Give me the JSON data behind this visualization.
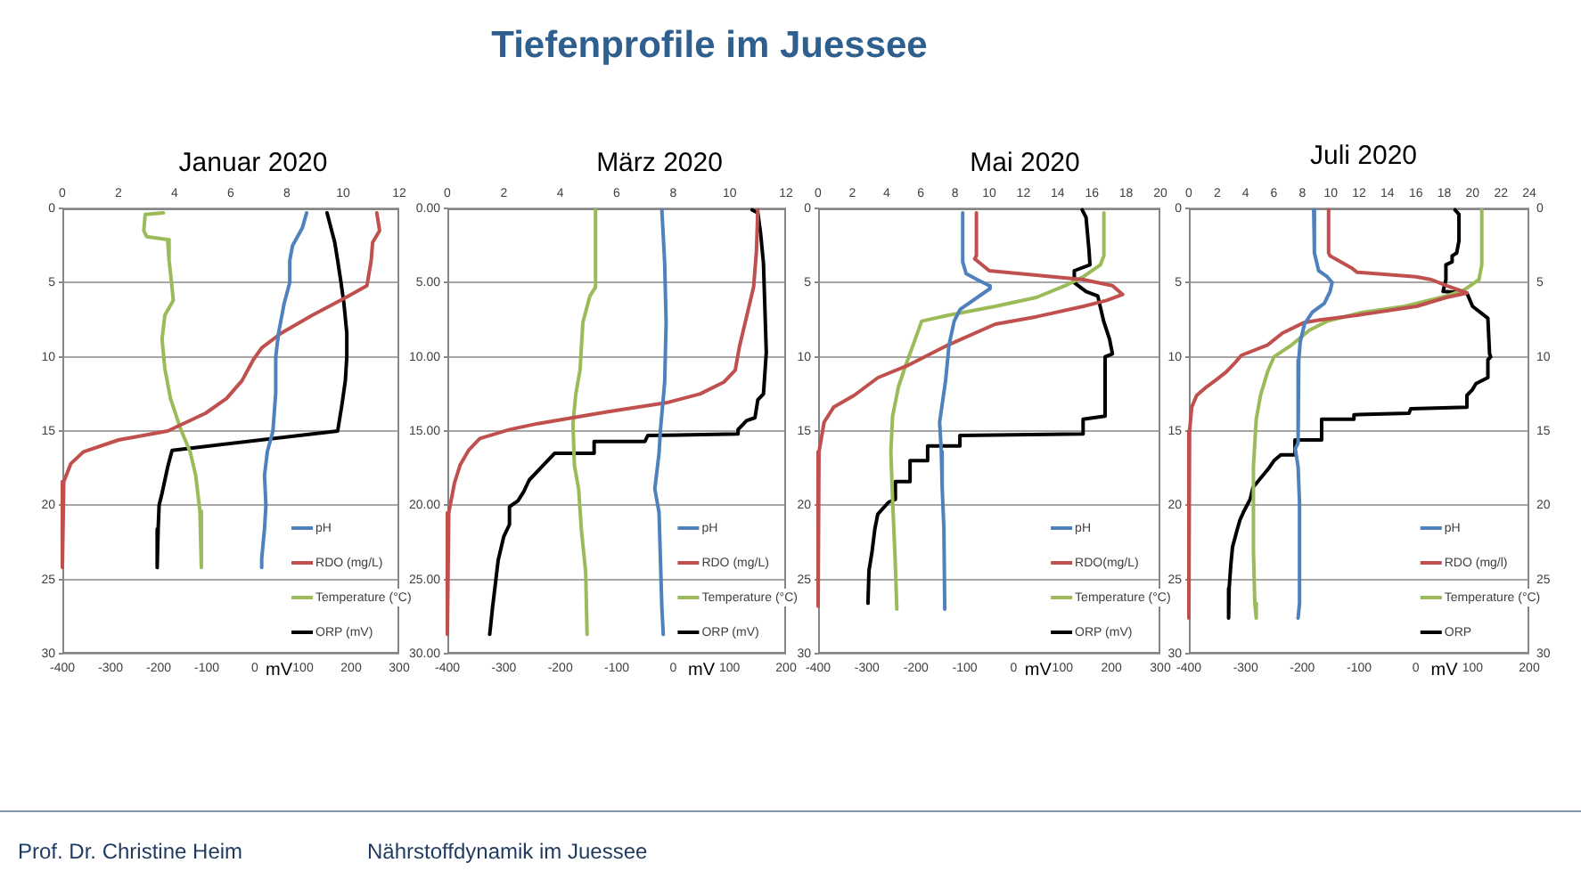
{
  "chart_data": [
    {
      "type": "other",
      "title": "Tiefenprofile im Juessee",
      "annotations": [
        "Prof. Dr. Christine Heim",
        "Nährstoffdynamik im Juessee"
      ]
    },
    {
      "type": "line",
      "title": "Januar 2020",
      "xlabel": "mV",
      "xlim": [
        -400,
        300
      ],
      "xticks": [
        -400,
        -300,
        -200,
        -100,
        0,
        100,
        200,
        300
      ],
      "x2lim": [
        0,
        12
      ],
      "x2ticks": [
        0,
        2,
        4,
        6,
        8,
        10,
        12
      ],
      "ylim": [
        30,
        0
      ],
      "yticks": [
        0,
        5,
        10,
        15,
        20,
        25,
        30
      ],
      "grid": "y",
      "legend": "bottom right",
      "series": [
        {
          "name": "pH",
          "color": "#4f81bd",
          "axis": "x2",
          "x": [
            8.7,
            8.55,
            8.2,
            8.1,
            8.1,
            7.9,
            7.7,
            7.6,
            7.6,
            7.5,
            7.3,
            7.2,
            7.25,
            7.2,
            7.1,
            7.1
          ],
          "values": [
            0.3,
            1.3,
            2.5,
            3.5,
            5.0,
            6.4,
            8.4,
            10.0,
            12.4,
            15.0,
            16.4,
            18.0,
            20.0,
            21.6,
            23.6,
            24.2
          ]
        },
        {
          "name": "RDO (mg/L)",
          "color": "#c0504d",
          "axis": "x2",
          "x": [
            11.2,
            11.3,
            11.05,
            11.0,
            10.85,
            10.1,
            8.9,
            7.8,
            7.1,
            6.8,
            6.4,
            5.85,
            5.1,
            3.75,
            2.0,
            0.75,
            0.3,
            0.05,
            0
          ],
          "values": [
            0.3,
            1.5,
            2.3,
            3.5,
            5.2,
            6.0,
            7.2,
            8.4,
            9.4,
            10.2,
            11.6,
            12.8,
            13.8,
            15.0,
            15.6,
            16.4,
            17.2,
            18.4,
            24.2
          ]
        },
        {
          "name": "Temperature (°C)",
          "color": "#9bbb59",
          "axis": "x2",
          "x": [
            3.6,
            2.95,
            2.9,
            3.0,
            3.75,
            3.8,
            3.9,
            3.95,
            3.65,
            3.55,
            3.65,
            3.85,
            4.2,
            4.55,
            4.75,
            4.9,
            4.95
          ],
          "values": [
            0.3,
            0.4,
            1.5,
            1.9,
            2.1,
            3.5,
            5.2,
            6.2,
            7.2,
            8.8,
            10.8,
            12.8,
            14.8,
            16.4,
            18.0,
            20.4,
            24.2
          ]
        },
        {
          "name": "ORP (mV)",
          "color": "#000000",
          "x": [
            150,
            158,
            166,
            172,
            179,
            185,
            191,
            191,
            188,
            181,
            172,
            -172,
            -177,
            -181,
            -193,
            -199,
            -201,
            -203
          ],
          "values": [
            0.3,
            1.3,
            2.3,
            3.5,
            5.0,
            6.4,
            8.4,
            10.0,
            11.6,
            13.2,
            15.0,
            16.3,
            16.9,
            17.4,
            19.2,
            20.0,
            21.6,
            24.2
          ]
        }
      ]
    },
    {
      "type": "line",
      "title": "März 2020",
      "xlabel": "mV",
      "xlim": [
        -400,
        200
      ],
      "xticks": [
        -400,
        -300,
        -200,
        -100,
        0,
        100,
        200
      ],
      "x2lim": [
        0,
        12
      ],
      "x2ticks": [
        0,
        2,
        4,
        6,
        8,
        10,
        12
      ],
      "ylim": [
        30,
        0
      ],
      "yticks": [
        {
          "value": 0,
          "label": "0.00"
        },
        {
          "value": 5,
          "label": "5.00"
        },
        {
          "value": 10,
          "label": "10.00"
        },
        {
          "value": 15,
          "label": "15.00"
        },
        {
          "value": 20,
          "label": "20.00"
        },
        {
          "value": 25,
          "label": "25.00"
        },
        {
          "value": 30,
          "label": "30.00"
        }
      ],
      "grid": "y",
      "legend": "bottom right",
      "series": [
        {
          "name": "pH",
          "color": "#4f81bd",
          "axis": "x2",
          "x": [
            7.6,
            7.7,
            7.75,
            7.7,
            7.55,
            7.5,
            7.35,
            7.5,
            7.55,
            7.6,
            7.65
          ],
          "values": [
            0.1,
            3.7,
            7.7,
            11.7,
            14.9,
            16.5,
            18.9,
            20.5,
            23.7,
            26.9,
            28.7
          ]
        },
        {
          "name": "RDO (mg/L)",
          "color": "#c0504d",
          "axis": "x2",
          "x": [
            11.0,
            10.95,
            10.85,
            10.6,
            10.35,
            10.2,
            9.8,
            8.95,
            7.75,
            5.7,
            3.2,
            2.2,
            1.15,
            0.75,
            0.45,
            0.25,
            0.05,
            0
          ],
          "values": [
            0.1,
            2.9,
            5.3,
            7.3,
            9.3,
            10.9,
            11.7,
            12.5,
            13.1,
            13.7,
            14.5,
            14.9,
            15.5,
            16.3,
            17.3,
            18.5,
            20.5,
            28.7
          ]
        },
        {
          "name": "Temperature (°C)",
          "color": "#9bbb59",
          "axis": "x2",
          "x": [
            5.25,
            5.25,
            5.05,
            4.8,
            4.7,
            4.55,
            4.45,
            4.5,
            4.65,
            4.75,
            4.9,
            4.95
          ],
          "values": [
            0.1,
            5.3,
            5.9,
            7.7,
            10.9,
            12.5,
            14.5,
            17.3,
            18.9,
            21.7,
            24.5,
            28.7
          ]
        },
        {
          "name": "ORP (mV)",
          "color": "#000000",
          "x": [
            140,
            150,
            155,
            160,
            165,
            160,
            150,
            145,
            130,
            115,
            115,
            -45,
            -50,
            -140,
            -140,
            -210,
            -235,
            -255,
            -265,
            -275,
            -290,
            -290,
            -300,
            -310,
            -315,
            -320,
            -325
          ],
          "values": [
            0.1,
            0.3,
            1.7,
            3.7,
            9.7,
            12.5,
            12.9,
            14.1,
            14.3,
            14.9,
            15.2,
            15.3,
            15.7,
            15.7,
            16.5,
            16.5,
            17.5,
            18.3,
            19.1,
            19.7,
            20.1,
            21.3,
            22.1,
            23.7,
            25.3,
            26.9,
            28.7
          ]
        }
      ]
    },
    {
      "type": "line",
      "title": "Mai 2020",
      "xlabel": "mV",
      "xlim": [
        -400,
        300
      ],
      "xticks": [
        -400,
        -300,
        -200,
        -100,
        0,
        100,
        200,
        300
      ],
      "x2lim": [
        0,
        20
      ],
      "x2ticks": [
        0,
        2,
        4,
        6,
        8,
        10,
        12,
        14,
        16,
        18,
        20
      ],
      "ylim": [
        30,
        0
      ],
      "yticks": [
        0,
        5,
        10,
        15,
        20,
        25,
        30
      ],
      "grid": "y",
      "legend": "bottom right",
      "series": [
        {
          "name": "pH",
          "color": "#4f81bd",
          "axis": "x2",
          "x": [
            8.45,
            8.45,
            8.65,
            9.3,
            10.0,
            10.05,
            9.3,
            8.3,
            7.95,
            7.65,
            7.45,
            7.25,
            7.1,
            7.2,
            7.25,
            7.35,
            7.4
          ],
          "values": [
            0.3,
            3.6,
            4.4,
            4.8,
            5.2,
            5.4,
            6.0,
            6.8,
            7.6,
            9.2,
            11.6,
            13.2,
            14.4,
            16.4,
            18.8,
            21.6,
            27.0
          ]
        },
        {
          "name": "RDO(mg/L)",
          "color": "#c0504d",
          "axis": "x2",
          "x": [
            9.25,
            9.25,
            9.15,
            10.0,
            15.5,
            17.2,
            17.8,
            16.85,
            15.5,
            12.75,
            10.35,
            7.6,
            5.2,
            3.5,
            2.1,
            0.9,
            0.35,
            0.05,
            0
          ],
          "values": [
            0.3,
            3.2,
            3.4,
            4.2,
            4.8,
            5.2,
            5.8,
            6.2,
            6.6,
            7.3,
            7.8,
            9.2,
            10.6,
            11.4,
            12.6,
            13.4,
            14.4,
            16.4,
            26.8
          ]
        },
        {
          "name": "Temperature (°C)",
          "color": "#9bbb59",
          "axis": "x2",
          "x": [
            16.7,
            16.7,
            16.5,
            15.5,
            14.45,
            12.75,
            10.35,
            7.6,
            6.05,
            5.55,
            5.05,
            4.7,
            4.35,
            4.25,
            4.35,
            4.5,
            4.6
          ],
          "values": [
            0.3,
            3.2,
            3.8,
            4.6,
            5.2,
            6.0,
            6.6,
            7.2,
            7.6,
            9.2,
            10.8,
            12.0,
            14.0,
            16.4,
            19.6,
            23.6,
            27.0
          ]
        },
        {
          "name": "ORP (mV)",
          "color": "#000000",
          "x": [
            140,
            148,
            154,
            156,
            124,
            124,
            148,
            172,
            184,
            196,
            202,
            187,
            187,
            142,
            142,
            -110,
            -110,
            -176,
            -176,
            -212,
            -212,
            -242,
            -242,
            -256,
            -278,
            -284,
            -290,
            -296,
            -298
          ],
          "values": [
            0.1,
            0.6,
            2.8,
            3.8,
            4.2,
            5.0,
            5.6,
            5.9,
            7.6,
            8.8,
            9.8,
            10.0,
            14.0,
            14.2,
            15.2,
            15.3,
            16.0,
            16.0,
            17.0,
            17.0,
            18.4,
            18.4,
            19.6,
            19.8,
            20.6,
            21.6,
            23.2,
            24.4,
            26.6
          ]
        }
      ]
    },
    {
      "type": "line",
      "title": "Juli 2020",
      "xlabel": "mV",
      "xlim": [
        -400,
        200
      ],
      "xticks": [
        -400,
        -300,
        -200,
        -100,
        0,
        100,
        200
      ],
      "x2lim": [
        0,
        24
      ],
      "x2ticks": [
        0,
        2,
        4,
        6,
        8,
        10,
        12,
        14,
        16,
        18,
        20,
        22,
        24
      ],
      "ylim": [
        30,
        0
      ],
      "yticks": [
        0,
        5,
        10,
        15,
        20,
        25,
        30
      ],
      "y2lim": [
        30,
        0
      ],
      "y2ticks": [
        0,
        5,
        10,
        15,
        20,
        25,
        30
      ],
      "grid": "y",
      "legend": "bottom right",
      "series": [
        {
          "name": "pH",
          "color": "#4f81bd",
          "axis": "x2",
          "x": [
            8.8,
            8.85,
            9.15,
            9.75,
            10.1,
            9.95,
            9.55,
            8.7,
            8.15,
            7.85,
            7.75,
            7.7,
            7.5,
            7.7,
            7.8,
            7.8,
            7.7
          ],
          "values": [
            0.1,
            3.0,
            4.2,
            4.6,
            5.0,
            5.6,
            6.4,
            7.0,
            7.8,
            9.0,
            10.2,
            15.8,
            16.2,
            17.4,
            19.8,
            26.6,
            27.6
          ]
        },
        {
          "name": "RDO (mg/l)",
          "color": "#c0504d",
          "axis": "x2",
          "x": [
            9.85,
            9.85,
            9.95,
            11.45,
            11.85,
            16.0,
            17.1,
            18.15,
            19.6,
            18.15,
            16.05,
            11.85,
            9.35,
            8.1,
            6.6,
            5.55,
            3.7,
            3.25,
            2.65,
            2.0,
            1.15,
            0.55,
            0.2,
            0.05,
            0
          ],
          "values": [
            0.1,
            3.0,
            3.2,
            4.0,
            4.3,
            4.6,
            4.8,
            5.2,
            5.7,
            6.0,
            6.6,
            7.2,
            7.5,
            7.7,
            8.4,
            9.2,
            9.9,
            10.4,
            11.0,
            11.5,
            12.1,
            12.6,
            13.4,
            15.0,
            27.6
          ]
        },
        {
          "name": "Temperature (°C)",
          "color": "#9bbb59",
          "axis": "x2",
          "x": [
            20.65,
            20.65,
            20.45,
            19.4,
            18.15,
            15.2,
            12.25,
            9.75,
            8.5,
            7.25,
            6.0,
            5.55,
            5.05,
            4.75,
            4.55,
            4.55,
            4.65,
            4.75
          ],
          "values": [
            0.1,
            3.8,
            4.8,
            5.5,
            5.9,
            6.6,
            7.0,
            7.6,
            8.2,
            9.2,
            10.0,
            11.0,
            12.6,
            14.2,
            17.4,
            23.0,
            26.6,
            27.6
          ]
        },
        {
          "name": "ORP",
          "color": "#000000",
          "x": [
            69,
            76,
            76,
            72,
            64,
            64,
            53,
            53,
            48,
            90,
            100,
            127,
            130,
            132,
            127,
            127,
            106,
            100,
            90,
            90,
            -9,
            -12,
            -109,
            -109,
            -166,
            -166,
            -213,
            -213,
            -238,
            -250,
            -261,
            -274,
            -287,
            -292,
            -303,
            -310,
            -316,
            -323,
            -326,
            -329,
            -330
          ],
          "values": [
            0.1,
            0.4,
            2.2,
            3.0,
            3.2,
            3.6,
            3.8,
            4.8,
            5.6,
            5.7,
            6.6,
            7.4,
            9.8,
            10.0,
            10.2,
            11.4,
            11.8,
            12.2,
            12.6,
            13.4,
            13.5,
            13.8,
            13.9,
            14.2,
            14.2,
            15.6,
            15.6,
            16.6,
            16.6,
            17.0,
            17.6,
            18.2,
            18.8,
            19.6,
            20.4,
            21.0,
            21.8,
            22.8,
            24.0,
            25.6,
            27.6
          ]
        }
      ]
    }
  ]
}
